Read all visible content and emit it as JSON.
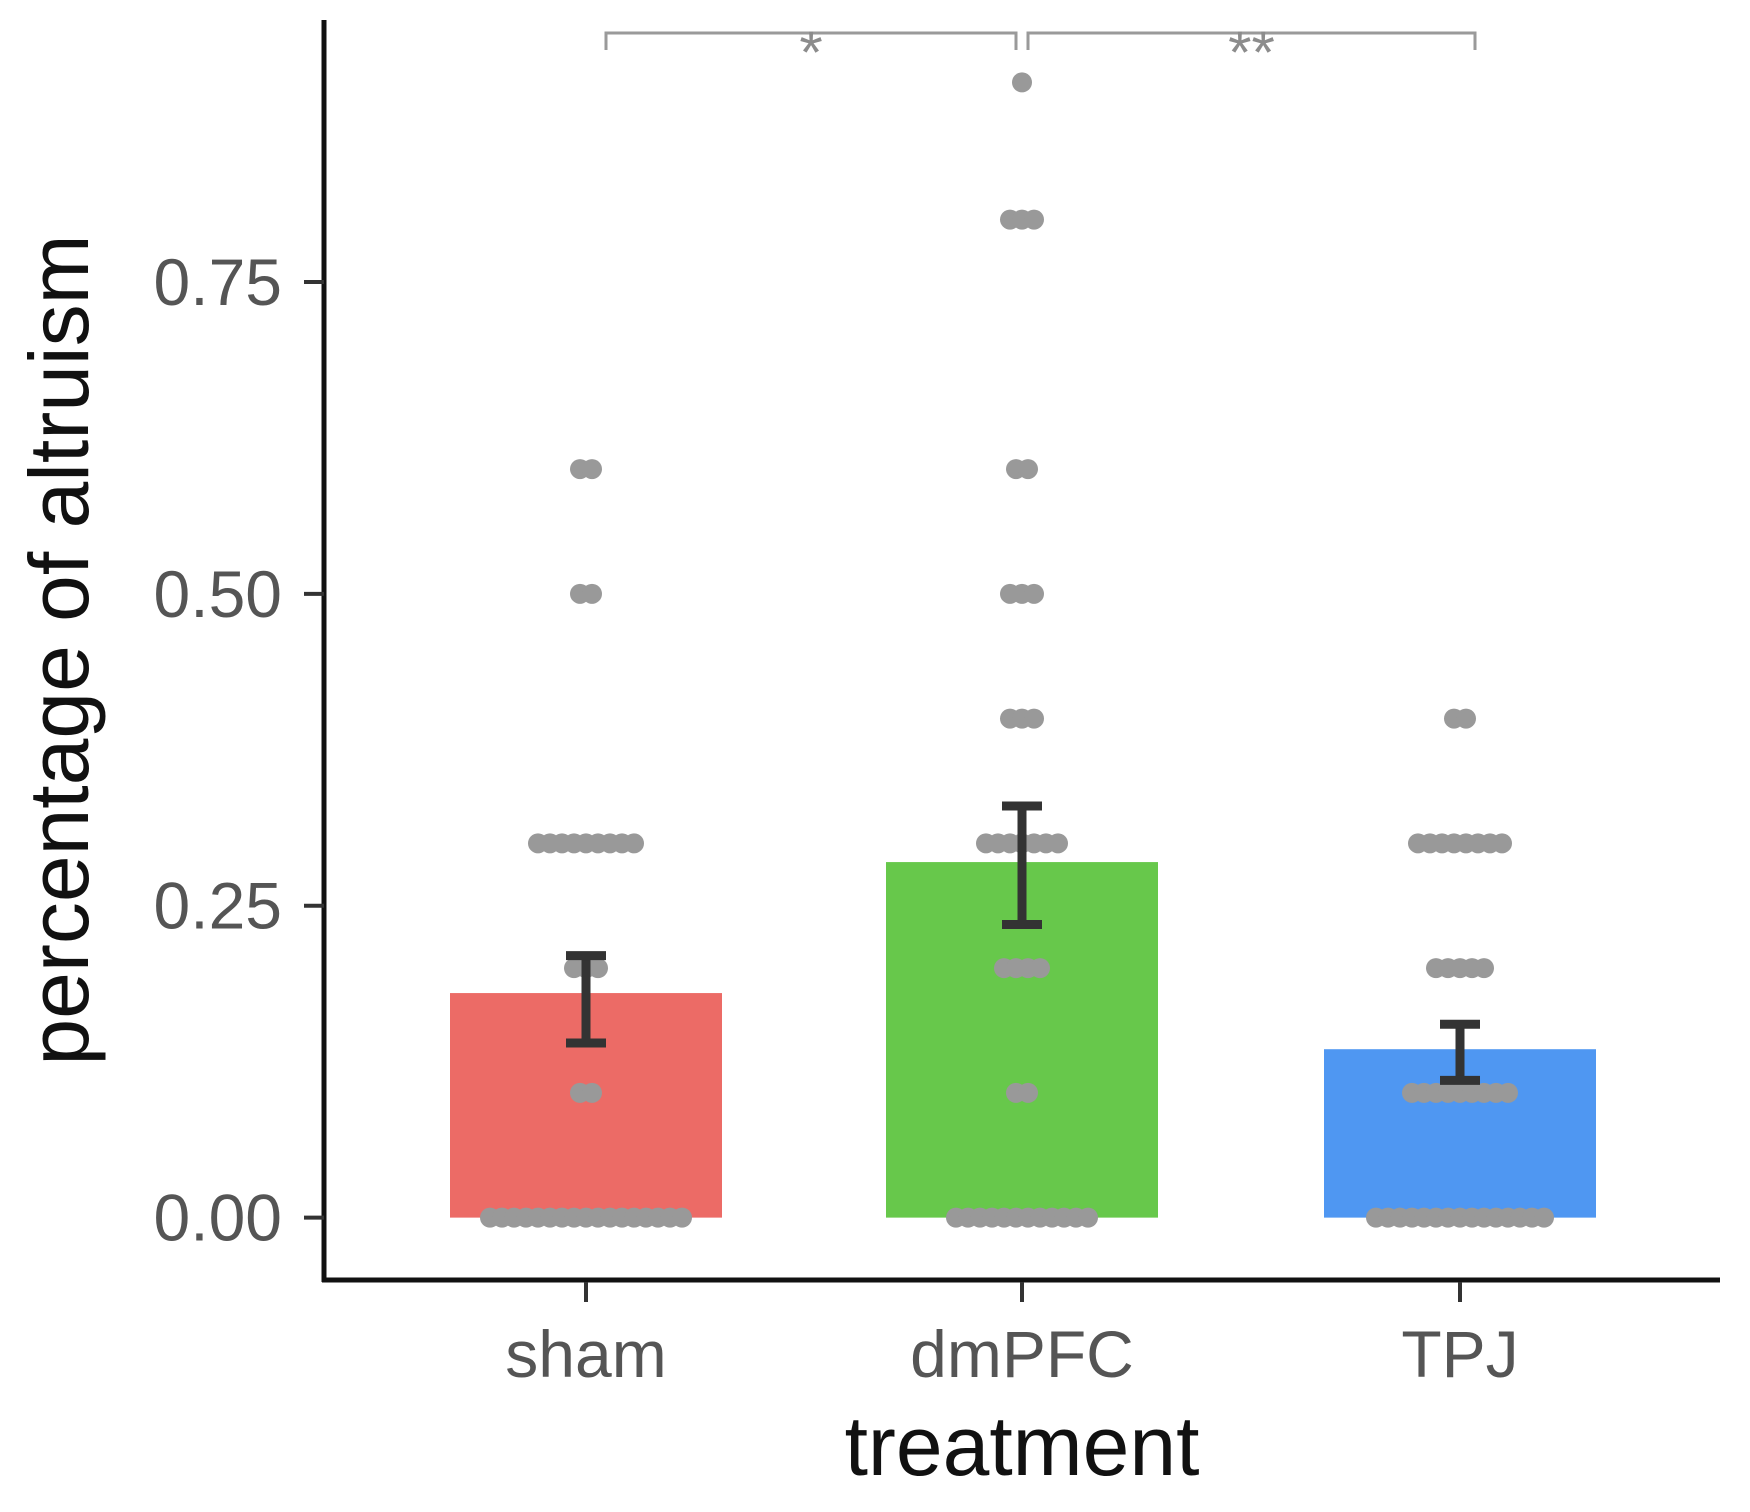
{
  "chart_data": {
    "type": "bar",
    "title": "",
    "xlabel": "treatment",
    "ylabel": "percentage of altruism",
    "categories": [
      "sham",
      "dmPFC",
      "TPJ"
    ],
    "values": [
      0.18,
      0.285,
      0.135
    ],
    "error_bars": [
      {
        "low": 0.14,
        "high": 0.21
      },
      {
        "low": 0.235,
        "high": 0.33
      },
      {
        "low": 0.11,
        "high": 0.155
      }
    ],
    "colors": [
      "#ec6b66",
      "#67c84b",
      "#4f97f2"
    ],
    "ylim": [
      -0.05,
      0.96
    ],
    "yticks": [
      0.0,
      0.25,
      0.5,
      0.75
    ],
    "ytick_labels": [
      "0.00",
      "0.25",
      "0.50",
      "0.75"
    ],
    "grid": false,
    "legend": "none",
    "points": [
      {
        "value": 0.6,
        "count": 2
      },
      {
        "value": 0.5,
        "count": 2
      },
      {
        "value": 0.3,
        "count": 9
      },
      {
        "value": 0.2,
        "count": 3
      },
      {
        "value": 0.1,
        "count": 2
      },
      {
        "value": 0.0,
        "count": 17
      },
      {
        "value": 0.91,
        "count": 1
      },
      {
        "value": 0.8,
        "count": 3
      },
      {
        "value": 0.6,
        "count": 2
      },
      {
        "value": 0.5,
        "count": 3
      },
      {
        "value": 0.4,
        "count": 3
      },
      {
        "value": 0.3,
        "count": 7
      },
      {
        "value": 0.2,
        "count": 4
      },
      {
        "value": 0.1,
        "count": 2
      },
      {
        "value": 0.0,
        "count": 12
      },
      {
        "value": 0.4,
        "count": 2
      },
      {
        "value": 0.3,
        "count": 8
      },
      {
        "value": 0.2,
        "count": 5
      },
      {
        "value": 0.1,
        "count": 9
      },
      {
        "value": 0.0,
        "count": 15
      }
    ],
    "point_category": [
      0,
      0,
      0,
      0,
      0,
      0,
      1,
      1,
      1,
      1,
      1,
      1,
      1,
      1,
      1,
      2,
      2,
      2,
      2,
      2
    ],
    "point_color": "#999999",
    "significance": [
      {
        "from": 0,
        "to": 1,
        "label": "*"
      },
      {
        "from": 1,
        "to": 2,
        "label": "**"
      }
    ]
  }
}
